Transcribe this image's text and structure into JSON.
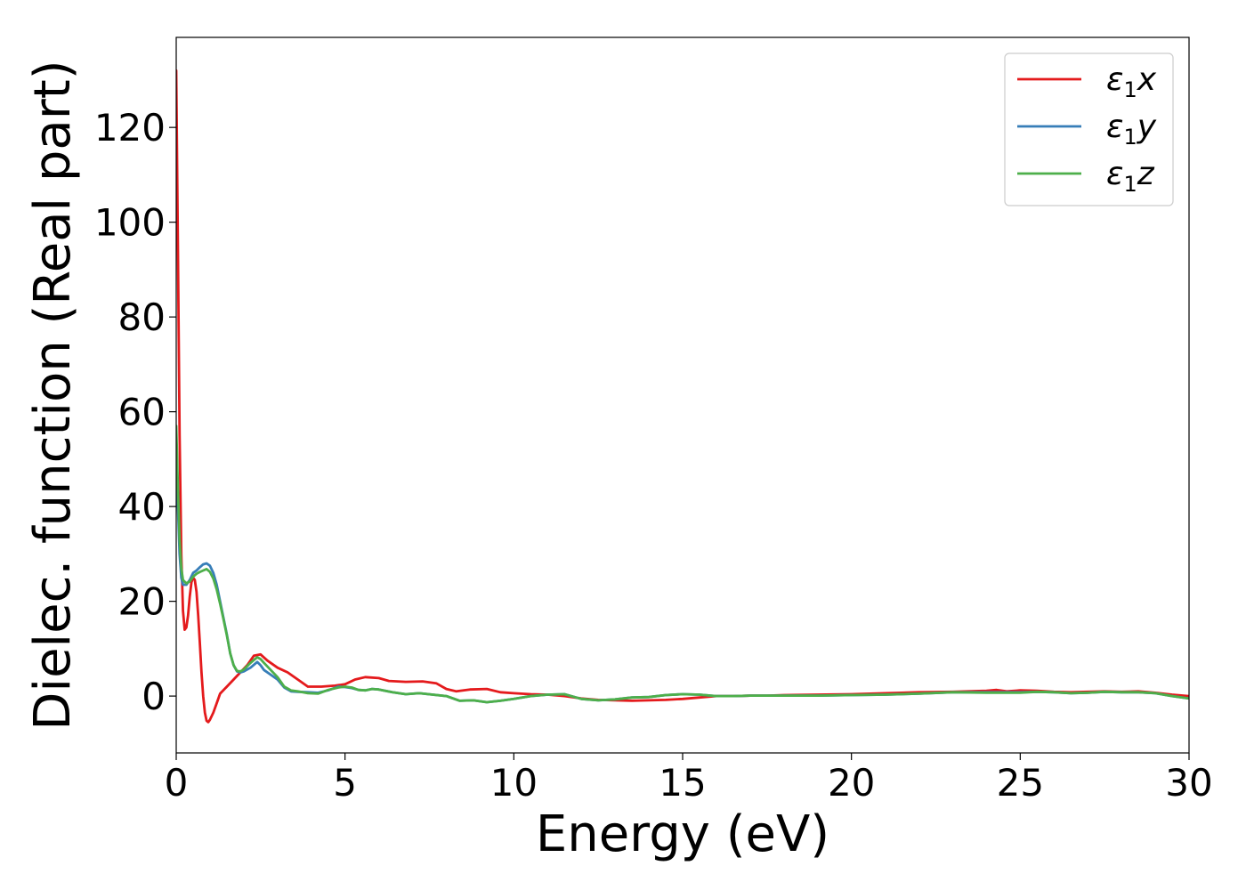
{
  "chart_data": {
    "type": "line",
    "xlabel": "Energy (eV)",
    "ylabel": "Dielec. function (Real part)",
    "xlim": [
      0,
      30
    ],
    "ylim": [
      -12,
      139
    ],
    "xticks": [
      0,
      5,
      10,
      15,
      20,
      25,
      30
    ],
    "yticks": [
      0,
      20,
      40,
      60,
      80,
      100,
      120
    ],
    "grid": false,
    "legend_position": "top-right",
    "series": [
      {
        "name": "ε1x",
        "legend": {
          "base": "ε",
          "sub": "1",
          "suffix": "x"
        },
        "color": "#e41a1c",
        "points": [
          [
            0.0,
            132
          ],
          [
            0.05,
            95
          ],
          [
            0.1,
            55
          ],
          [
            0.15,
            30
          ],
          [
            0.2,
            18
          ],
          [
            0.25,
            14
          ],
          [
            0.3,
            14.5
          ],
          [
            0.35,
            17
          ],
          [
            0.4,
            21
          ],
          [
            0.45,
            24
          ],
          [
            0.5,
            25
          ],
          [
            0.55,
            24.5
          ],
          [
            0.6,
            22
          ],
          [
            0.65,
            17
          ],
          [
            0.7,
            11
          ],
          [
            0.75,
            5
          ],
          [
            0.8,
            0
          ],
          [
            0.85,
            -3.5
          ],
          [
            0.9,
            -5.2
          ],
          [
            0.95,
            -5.5
          ],
          [
            1.0,
            -5
          ],
          [
            1.1,
            -3.5
          ],
          [
            1.2,
            -1.5
          ],
          [
            1.3,
            0.5
          ],
          [
            1.5,
            2
          ],
          [
            1.7,
            3.5
          ],
          [
            1.9,
            5
          ],
          [
            2.1,
            6.5
          ],
          [
            2.3,
            8.5
          ],
          [
            2.5,
            8.8
          ],
          [
            2.7,
            7.5
          ],
          [
            3.0,
            6
          ],
          [
            3.3,
            5
          ],
          [
            3.6,
            3.5
          ],
          [
            3.9,
            2
          ],
          [
            4.3,
            2
          ],
          [
            4.7,
            2.2
          ],
          [
            5.0,
            2.5
          ],
          [
            5.3,
            3.5
          ],
          [
            5.6,
            4
          ],
          [
            6.0,
            3.8
          ],
          [
            6.3,
            3.2
          ],
          [
            6.8,
            3
          ],
          [
            7.3,
            3.1
          ],
          [
            7.7,
            2.7
          ],
          [
            8.0,
            1.5
          ],
          [
            8.3,
            1
          ],
          [
            8.7,
            1.4
          ],
          [
            9.2,
            1.5
          ],
          [
            9.6,
            0.8
          ],
          [
            10.0,
            0.6
          ],
          [
            10.5,
            0.4
          ],
          [
            11.0,
            0.3
          ],
          [
            11.5,
            0
          ],
          [
            12.0,
            -0.5
          ],
          [
            12.5,
            -0.8
          ],
          [
            13.0,
            -0.9
          ],
          [
            13.5,
            -1
          ],
          [
            14.0,
            -0.9
          ],
          [
            14.5,
            -0.8
          ],
          [
            15.0,
            -0.6
          ],
          [
            15.5,
            -0.3
          ],
          [
            16.0,
            0
          ],
          [
            16.5,
            0
          ],
          [
            17.0,
            0.1
          ],
          [
            17.5,
            0.1
          ],
          [
            18.0,
            0.2
          ],
          [
            19.0,
            0.3
          ],
          [
            20.0,
            0.4
          ],
          [
            21.0,
            0.6
          ],
          [
            22.0,
            0.8
          ],
          [
            23.0,
            0.9
          ],
          [
            24.0,
            1.1
          ],
          [
            24.3,
            1.3
          ],
          [
            24.6,
            1
          ],
          [
            25.0,
            1.2
          ],
          [
            25.5,
            1.1
          ],
          [
            26.0,
            0.9
          ],
          [
            26.5,
            0.8
          ],
          [
            27.0,
            0.9
          ],
          [
            27.5,
            1
          ],
          [
            28.0,
            0.9
          ],
          [
            28.5,
            1
          ],
          [
            29.0,
            0.7
          ],
          [
            29.5,
            0.3
          ],
          [
            30.0,
            0
          ]
        ]
      },
      {
        "name": "ε1y",
        "legend": {
          "base": "ε",
          "sub": "1",
          "suffix": "y"
        },
        "color": "#377eb8",
        "points": [
          [
            0.0,
            52
          ],
          [
            0.05,
            40
          ],
          [
            0.1,
            30
          ],
          [
            0.15,
            25
          ],
          [
            0.2,
            23.5
          ],
          [
            0.3,
            23.5
          ],
          [
            0.4,
            24.5
          ],
          [
            0.5,
            26
          ],
          [
            0.6,
            26.5
          ],
          [
            0.7,
            27.2
          ],
          [
            0.8,
            27.8
          ],
          [
            0.9,
            28
          ],
          [
            1.0,
            27.5
          ],
          [
            1.1,
            26
          ],
          [
            1.2,
            23.5
          ],
          [
            1.3,
            20
          ],
          [
            1.4,
            16.5
          ],
          [
            1.5,
            13
          ],
          [
            1.6,
            9
          ],
          [
            1.7,
            6.5
          ],
          [
            1.8,
            5.2
          ],
          [
            1.9,
            5
          ],
          [
            2.0,
            5.2
          ],
          [
            2.2,
            6
          ],
          [
            2.4,
            7.2
          ],
          [
            2.5,
            6.5
          ],
          [
            2.6,
            5.5
          ],
          [
            2.8,
            4.5
          ],
          [
            3.0,
            3.5
          ],
          [
            3.2,
            1.8
          ],
          [
            3.4,
            1
          ],
          [
            3.6,
            0.9
          ],
          [
            3.9,
            0.8
          ],
          [
            4.2,
            0.7
          ],
          [
            4.5,
            1.2
          ],
          [
            4.8,
            2
          ],
          [
            5.0,
            1.9
          ],
          [
            5.2,
            1.7
          ],
          [
            5.4,
            1.3
          ],
          [
            5.6,
            1.2
          ],
          [
            5.8,
            1.5
          ],
          [
            6.0,
            1.4
          ],
          [
            6.4,
            0.8
          ],
          [
            6.8,
            0.4
          ],
          [
            7.2,
            0.6
          ],
          [
            7.6,
            0.3
          ],
          [
            8.0,
            0
          ],
          [
            8.4,
            -1
          ],
          [
            8.8,
            -0.9
          ],
          [
            9.2,
            -1.3
          ],
          [
            9.6,
            -1
          ],
          [
            10.0,
            -0.6
          ],
          [
            10.5,
            0
          ],
          [
            11.0,
            0.3
          ],
          [
            11.5,
            0.4
          ],
          [
            12.0,
            -0.6
          ],
          [
            12.5,
            -0.9
          ],
          [
            13.0,
            -0.7
          ],
          [
            13.5,
            -0.3
          ],
          [
            14.0,
            -0.2
          ],
          [
            14.5,
            0.2
          ],
          [
            15.0,
            0.4
          ],
          [
            15.5,
            0.3
          ],
          [
            16.0,
            0
          ],
          [
            16.5,
            0
          ],
          [
            17.0,
            0.1
          ],
          [
            18.0,
            0.1
          ],
          [
            19.0,
            0.1
          ],
          [
            20.0,
            0.2
          ],
          [
            21.0,
            0.3
          ],
          [
            22.0,
            0.5
          ],
          [
            23.0,
            0.8
          ],
          [
            24.0,
            0.8
          ],
          [
            25.0,
            0.8
          ],
          [
            25.5,
            0.9
          ],
          [
            26.0,
            0.8
          ],
          [
            26.5,
            0.6
          ],
          [
            27.0,
            0.7
          ],
          [
            27.5,
            0.9
          ],
          [
            28.0,
            0.8
          ],
          [
            28.5,
            0.8
          ],
          [
            29.0,
            0.6
          ],
          [
            29.5,
            0
          ],
          [
            30.0,
            -0.5
          ]
        ]
      },
      {
        "name": "ε1z",
        "legend": {
          "base": "ε",
          "sub": "1",
          "suffix": "z"
        },
        "color": "#4daf4a",
        "points": [
          [
            0.0,
            57
          ],
          [
            0.05,
            44
          ],
          [
            0.1,
            33
          ],
          [
            0.15,
            27
          ],
          [
            0.2,
            24.5
          ],
          [
            0.3,
            23.8
          ],
          [
            0.4,
            24.2
          ],
          [
            0.5,
            25.2
          ],
          [
            0.6,
            25.8
          ],
          [
            0.7,
            26.2
          ],
          [
            0.8,
            26.5
          ],
          [
            0.9,
            26.8
          ],
          [
            1.0,
            26.2
          ],
          [
            1.1,
            24.8
          ],
          [
            1.2,
            22.5
          ],
          [
            1.3,
            19.5
          ],
          [
            1.4,
            16.2
          ],
          [
            1.5,
            12.8
          ],
          [
            1.6,
            9
          ],
          [
            1.7,
            6.5
          ],
          [
            1.8,
            5.3
          ],
          [
            1.9,
            5.2
          ],
          [
            2.0,
            5.6
          ],
          [
            2.2,
            7
          ],
          [
            2.4,
            8.2
          ],
          [
            2.5,
            7.8
          ],
          [
            2.6,
            7
          ],
          [
            2.8,
            5.5
          ],
          [
            3.0,
            4
          ],
          [
            3.2,
            2
          ],
          [
            3.4,
            1.2
          ],
          [
            3.6,
            1
          ],
          [
            3.9,
            0.6
          ],
          [
            4.2,
            0.5
          ],
          [
            4.5,
            1.3
          ],
          [
            4.8,
            1.8
          ],
          [
            5.0,
            2
          ],
          [
            5.2,
            1.8
          ],
          [
            5.4,
            1.3
          ],
          [
            5.6,
            1.2
          ],
          [
            5.8,
            1.5
          ],
          [
            6.0,
            1.4
          ],
          [
            6.4,
            0.8
          ],
          [
            6.8,
            0.4
          ],
          [
            7.2,
            0.6
          ],
          [
            7.6,
            0.3
          ],
          [
            8.0,
            0
          ],
          [
            8.4,
            -1
          ],
          [
            8.8,
            -0.9
          ],
          [
            9.2,
            -1.3
          ],
          [
            9.6,
            -1
          ],
          [
            10.0,
            -0.6
          ],
          [
            10.5,
            0
          ],
          [
            11.0,
            0.3
          ],
          [
            11.5,
            0.4
          ],
          [
            12.0,
            -0.6
          ],
          [
            12.5,
            -0.9
          ],
          [
            13.0,
            -0.7
          ],
          [
            13.5,
            -0.3
          ],
          [
            14.0,
            -0.2
          ],
          [
            14.5,
            0.2
          ],
          [
            15.0,
            0.4
          ],
          [
            15.5,
            0.3
          ],
          [
            16.0,
            0
          ],
          [
            16.5,
            0
          ],
          [
            17.0,
            0.1
          ],
          [
            18.0,
            0.1
          ],
          [
            19.0,
            0.1
          ],
          [
            20.0,
            0.2
          ],
          [
            21.0,
            0.3
          ],
          [
            22.0,
            0.5
          ],
          [
            23.0,
            0.8
          ],
          [
            24.0,
            0.7
          ],
          [
            25.0,
            0.7
          ],
          [
            25.5,
            0.9
          ],
          [
            26.0,
            0.8
          ],
          [
            26.5,
            0.6
          ],
          [
            27.0,
            0.7
          ],
          [
            27.5,
            0.9
          ],
          [
            28.0,
            0.8
          ],
          [
            28.5,
            0.8
          ],
          [
            29.0,
            0.6
          ],
          [
            29.5,
            0
          ],
          [
            30.0,
            -0.5
          ]
        ]
      }
    ]
  }
}
